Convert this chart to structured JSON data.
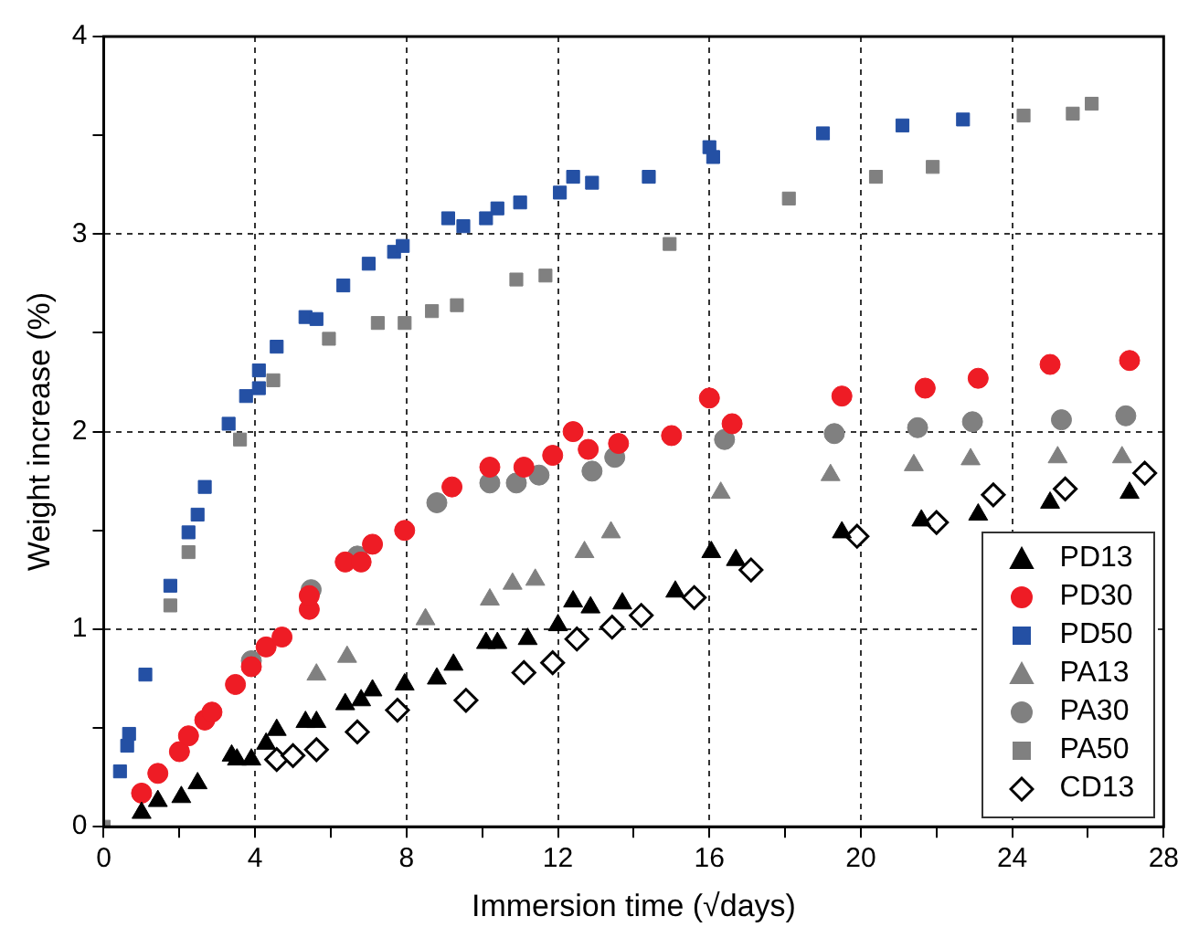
{
  "chart_data": {
    "type": "scatter",
    "xlabel": "Immersion time (√days)",
    "ylabel": "Weight increase (%)",
    "xlim": [
      0,
      28
    ],
    "ylim": [
      0,
      4
    ],
    "xticks": [
      0,
      {
        "value": 2,
        "label": null
      },
      4,
      {
        "value": 6,
        "label": null
      },
      8,
      {
        "value": 10,
        "label": null
      },
      12,
      {
        "value": 14,
        "label": null
      },
      16,
      {
        "value": 18,
        "label": null
      },
      20,
      {
        "value": 22,
        "label": null
      },
      24,
      {
        "value": 26,
        "label": null
      },
      28
    ],
    "yticks": [
      0,
      {
        "value": 0.5,
        "label": null
      },
      1,
      {
        "value": 1.5,
        "label": null
      },
      2,
      {
        "value": 2.5,
        "label": null
      },
      3,
      {
        "value": 3.5,
        "label": null
      },
      4
    ],
    "grid": true,
    "legend": "bottom right",
    "series": [
      {
        "name": "PD13",
        "color": "#000000",
        "marker": "triangle",
        "x": [
          1.0,
          1.43,
          2.05,
          2.48,
          3.38,
          3.52,
          3.9,
          4.29,
          4.57,
          5.33,
          5.62,
          6.38,
          6.8,
          7.1,
          7.95,
          8.8,
          9.24,
          10.1,
          10.4,
          11.2,
          12.0,
          12.4,
          12.86,
          13.7,
          15.1,
          16.05,
          16.7,
          19.5,
          21.6,
          23.1,
          25.0,
          27.1
        ],
        "values": [
          0.07,
          0.13,
          0.15,
          0.22,
          0.36,
          0.34,
          0.34,
          0.42,
          0.49,
          0.53,
          0.53,
          0.62,
          0.64,
          0.69,
          0.72,
          0.75,
          0.82,
          0.93,
          0.93,
          0.95,
          1.02,
          1.14,
          1.11,
          1.13,
          1.19,
          1.39,
          1.35,
          1.49,
          1.55,
          1.58,
          1.64,
          1.69
        ]
      },
      {
        "name": "PD30",
        "color": "#ee1c25",
        "marker": "circle",
        "x": [
          1.0,
          1.43,
          2.0,
          2.24,
          2.67,
          2.86,
          3.48,
          3.9,
          4.29,
          4.71,
          5.43,
          5.43,
          6.38,
          6.8,
          7.1,
          7.95,
          9.2,
          10.2,
          11.1,
          11.86,
          12.4,
          12.8,
          13.6,
          15.0,
          16.0,
          16.6,
          19.5,
          21.7,
          23.1,
          25.0,
          27.1
        ],
        "values": [
          0.17,
          0.27,
          0.38,
          0.46,
          0.54,
          0.58,
          0.72,
          0.81,
          0.91,
          0.96,
          1.1,
          1.17,
          1.34,
          1.34,
          1.43,
          1.5,
          1.72,
          1.82,
          1.82,
          1.88,
          2.0,
          1.91,
          1.94,
          1.98,
          2.17,
          2.04,
          2.18,
          2.22,
          2.27,
          2.34,
          2.36
        ]
      },
      {
        "name": "PD50",
        "color": "#2450a4",
        "marker": "square",
        "x": [
          0.43,
          0.62,
          0.67,
          1.1,
          1.76,
          2.24,
          2.48,
          2.67,
          3.3,
          3.76,
          4.1,
          4.1,
          4.57,
          5.33,
          5.62,
          6.33,
          7.0,
          7.67,
          7.9,
          9.1,
          9.5,
          10.1,
          10.4,
          11.0,
          12.05,
          12.4,
          12.9,
          14.4,
          16.0,
          16.1,
          19.0,
          21.1,
          22.7
        ],
        "values": [
          0.28,
          0.41,
          0.47,
          0.77,
          1.22,
          1.49,
          1.58,
          1.72,
          2.04,
          2.18,
          2.22,
          2.31,
          2.43,
          2.58,
          2.57,
          2.74,
          2.85,
          2.91,
          2.94,
          3.08,
          3.04,
          3.08,
          3.13,
          3.16,
          3.21,
          3.29,
          3.26,
          3.29,
          3.44,
          3.39,
          3.51,
          3.55,
          3.58
        ]
      },
      {
        "name": "PA13",
        "color": "#808080",
        "marker": "triangle",
        "x": [
          5.62,
          6.43,
          8.5,
          10.2,
          10.8,
          11.4,
          12.7,
          13.4,
          16.3,
          19.2,
          21.4,
          22.9,
          25.2,
          26.9
        ],
        "values": [
          0.77,
          0.86,
          1.05,
          1.15,
          1.23,
          1.25,
          1.39,
          1.49,
          1.69,
          1.78,
          1.83,
          1.86,
          1.87,
          1.87
        ]
      },
      {
        "name": "PA30",
        "color": "#808080",
        "marker": "circle",
        "x": [
          3.9,
          5.48,
          6.7,
          8.8,
          10.2,
          10.9,
          11.5,
          12.9,
          13.5,
          16.4,
          19.3,
          21.5,
          22.95,
          25.3,
          27.0
        ],
        "values": [
          0.84,
          1.2,
          1.37,
          1.64,
          1.74,
          1.74,
          1.78,
          1.8,
          1.87,
          1.96,
          1.99,
          2.02,
          2.05,
          2.06,
          2.08
        ]
      },
      {
        "name": "PA50",
        "color": "#808080",
        "marker": "square",
        "x": [
          0,
          1.76,
          2.24,
          3.6,
          4.48,
          5.95,
          7.24,
          7.95,
          8.67,
          9.33,
          10.9,
          11.67,
          14.95,
          18.1,
          20.4,
          21.9,
          24.3,
          25.6,
          26.1
        ],
        "values": [
          0,
          1.12,
          1.39,
          1.96,
          2.26,
          2.47,
          2.55,
          2.55,
          2.61,
          2.64,
          2.77,
          2.79,
          2.95,
          3.18,
          3.29,
          3.34,
          3.6,
          3.61,
          3.66
        ]
      },
      {
        "name": "CD13",
        "color": "#000000",
        "marker": "diamond",
        "x": [
          4.57,
          5.0,
          5.62,
          6.7,
          7.76,
          9.57,
          11.1,
          11.86,
          12.5,
          13.43,
          14.2,
          15.6,
          17.1,
          19.9,
          22.0,
          23.5,
          25.4,
          27.5
        ],
        "values": [
          0.34,
          0.36,
          0.39,
          0.48,
          0.59,
          0.64,
          0.78,
          0.83,
          0.95,
          1.01,
          1.07,
          1.16,
          1.3,
          1.47,
          1.54,
          1.68,
          1.71,
          1.79
        ]
      }
    ]
  }
}
